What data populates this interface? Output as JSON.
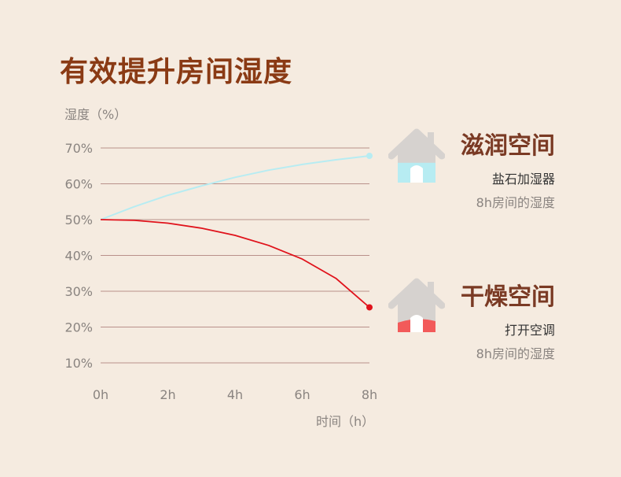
{
  "chart_data": {
    "type": "line",
    "title": "有效提升房间湿度",
    "ylabel": "湿度（%）",
    "xlabel": "时间（h）",
    "x": [
      0,
      2,
      4,
      6,
      8
    ],
    "x_tick_labels": [
      "0h",
      "2h",
      "4h",
      "6h",
      "8h"
    ],
    "y_ticks": [
      10,
      20,
      30,
      40,
      50,
      60,
      70
    ],
    "y_tick_labels": [
      "10%",
      "20%",
      "30%",
      "40%",
      "50%",
      "60%",
      "70%"
    ],
    "ylim": [
      10,
      70
    ],
    "xlim": [
      0,
      8
    ],
    "grid": true,
    "series": [
      {
        "name": "滋润空间",
        "color": "#b7ecf2",
        "x": [
          0,
          1,
          2,
          3,
          4,
          5,
          6,
          7,
          8
        ],
        "values": [
          50,
          53.6,
          56.8,
          59.4,
          61.8,
          63.8,
          65.4,
          66.7,
          67.8
        ]
      },
      {
        "name": "干燥空间",
        "color": "#e0121b",
        "x": [
          0,
          1,
          2,
          3,
          4,
          5,
          6,
          7,
          8
        ],
        "values": [
          50,
          49.8,
          49,
          47.6,
          45.6,
          42.8,
          39,
          33.6,
          25.5
        ]
      }
    ]
  },
  "panels": [
    {
      "title": "滋润空间",
      "subtitle": "盐石加湿器",
      "note": "8h房间的湿度",
      "icon": "house-icon",
      "fill_color": "#b7ecf2",
      "fill_level": 0.45
    },
    {
      "title": "干燥空间",
      "subtitle": "打开空调",
      "note": "8h房间的湿度",
      "icon": "house-icon",
      "fill_color": "#f25a5a",
      "fill_level": 0.25
    }
  ]
}
